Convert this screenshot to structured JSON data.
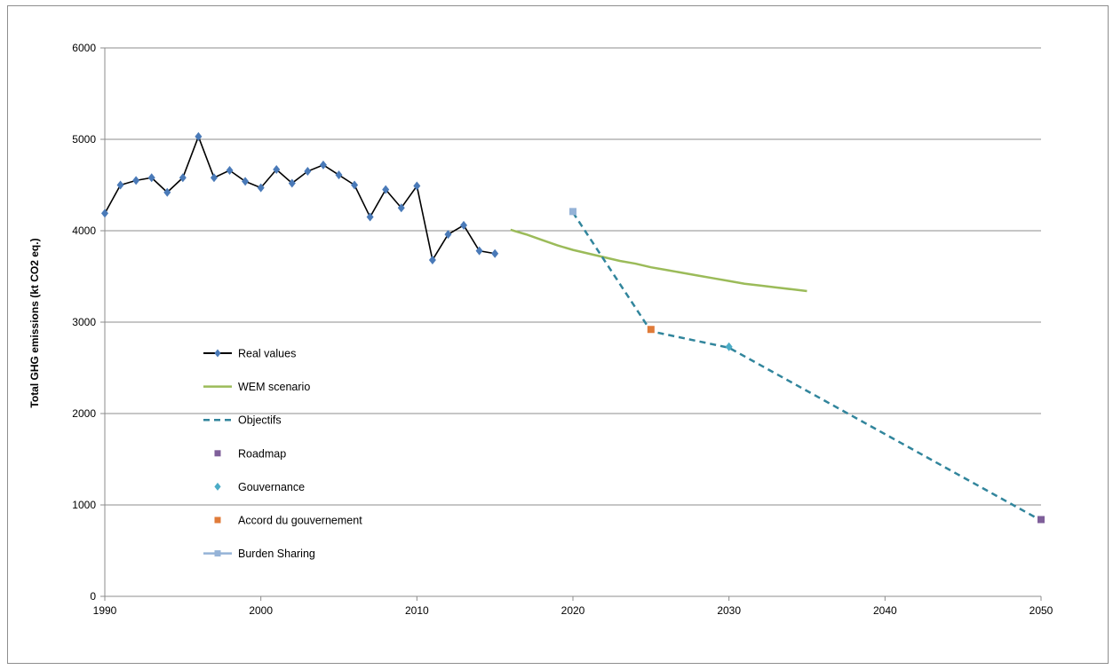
{
  "chart_data": {
    "type": "line",
    "title": "",
    "xlabel": "",
    "ylabel": "Total GHG emissions (kt CO2 eq.)",
    "xlim": [
      1990,
      2050
    ],
    "ylim": [
      0,
      6000
    ],
    "x_ticks": [
      1990,
      2000,
      2010,
      2020,
      2030,
      2040,
      2050
    ],
    "y_ticks": [
      0,
      1000,
      2000,
      3000,
      4000,
      5000,
      6000
    ],
    "grid": "horizontal",
    "legend_position": "left-inside",
    "series": [
      {
        "name": "Real values",
        "style": "line-with-diamond-markers",
        "color": "#000000",
        "marker_color": "#4a7ab8",
        "x": [
          1990,
          1991,
          1992,
          1993,
          1994,
          1995,
          1996,
          1997,
          1998,
          1999,
          2000,
          2001,
          2002,
          2003,
          2004,
          2005,
          2006,
          2007,
          2008,
          2009,
          2010,
          2011,
          2012,
          2013,
          2014,
          2015
        ],
        "y": [
          4190,
          4500,
          4550,
          4580,
          4420,
          4580,
          5030,
          4580,
          4660,
          4540,
          4470,
          4670,
          4520,
          4650,
          4720,
          4610,
          4500,
          4150,
          4450,
          4250,
          4490,
          3680,
          3960,
          4060,
          3780,
          3750
        ]
      },
      {
        "name": "WEM scenario",
        "style": "line",
        "color": "#9bbb59",
        "x": [
          2016,
          2017,
          2018,
          2019,
          2020,
          2021,
          2022,
          2023,
          2024,
          2025,
          2026,
          2027,
          2028,
          2029,
          2030,
          2031,
          2032,
          2033,
          2034,
          2035
        ],
        "y": [
          4010,
          3960,
          3900,
          3840,
          3790,
          3750,
          3710,
          3670,
          3640,
          3600,
          3570,
          3540,
          3510,
          3480,
          3450,
          3420,
          3400,
          3380,
          3360,
          3340
        ]
      },
      {
        "name": "Objectifs",
        "style": "dashed-line",
        "color": "#31859c",
        "x": [
          2020,
          2025,
          2030,
          2050
        ],
        "y": [
          4200,
          2900,
          2720,
          830
        ]
      },
      {
        "name": "Roadmap",
        "style": "square-marker",
        "color": "#7f5f9a",
        "x": [
          2050
        ],
        "y": [
          840
        ]
      },
      {
        "name": "Gouvernance",
        "style": "diamond-marker",
        "color": "#4bacc6",
        "x": [
          2030
        ],
        "y": [
          2730
        ]
      },
      {
        "name": "Accord du gouvernement",
        "style": "square-marker",
        "color": "#e07b39",
        "x": [
          2025
        ],
        "y": [
          2920
        ]
      },
      {
        "name": "Burden Sharing",
        "style": "line-with-square-markers",
        "color": "#95b3d7",
        "x": [
          2020
        ],
        "y": [
          4210
        ]
      }
    ]
  }
}
